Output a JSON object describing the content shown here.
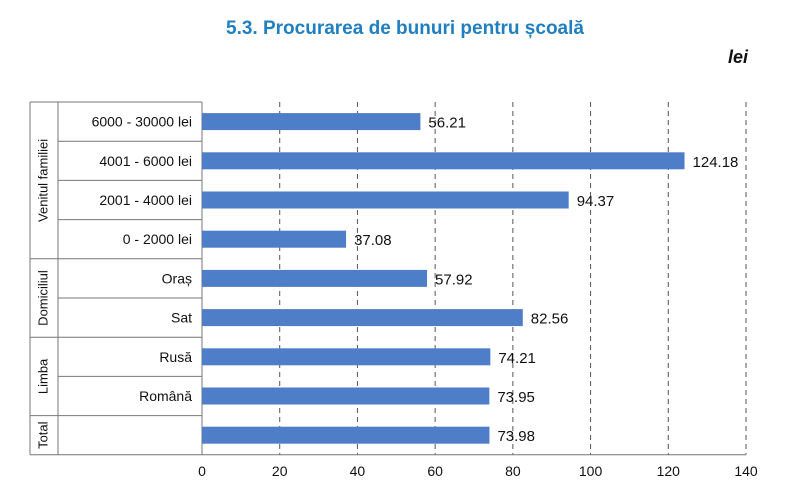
{
  "title": "5.3. Procurarea de bunuri pentru școală",
  "unit": "lei",
  "colors": {
    "title": "#1f7fc0",
    "bar": "#4f7ec9"
  },
  "chart_data": {
    "type": "bar",
    "orientation": "horizontal",
    "title": "5.3. Procurarea de bunuri pentru școală",
    "unit": "lei",
    "xlim": [
      0,
      140
    ],
    "xticks": [
      0,
      20,
      40,
      60,
      80,
      100,
      120,
      140
    ],
    "grid": "vertical-dashed",
    "groups": [
      {
        "name": "Venitul familiei",
        "categories": [
          "6000 - 30000 lei",
          "4001 - 6000 lei",
          "2001 - 4000 lei",
          "0 - 2000 lei"
        ],
        "values": [
          56.21,
          124.18,
          94.37,
          37.08
        ],
        "labels": [
          "56.21",
          "124.18",
          "94.37",
          "37.08"
        ]
      },
      {
        "name": "Domiciliul",
        "categories": [
          "Oraș",
          "Sat"
        ],
        "values": [
          57.92,
          82.56
        ],
        "labels": [
          "57.92",
          "82.56"
        ]
      },
      {
        "name": "Limba",
        "categories": [
          "Rusă",
          "Română"
        ],
        "values": [
          74.21,
          73.95
        ],
        "labels": [
          "74.21",
          "73.95"
        ]
      },
      {
        "name": "Total",
        "categories": [
          ""
        ],
        "values": [
          73.98
        ],
        "labels": [
          "73.98"
        ]
      }
    ]
  }
}
